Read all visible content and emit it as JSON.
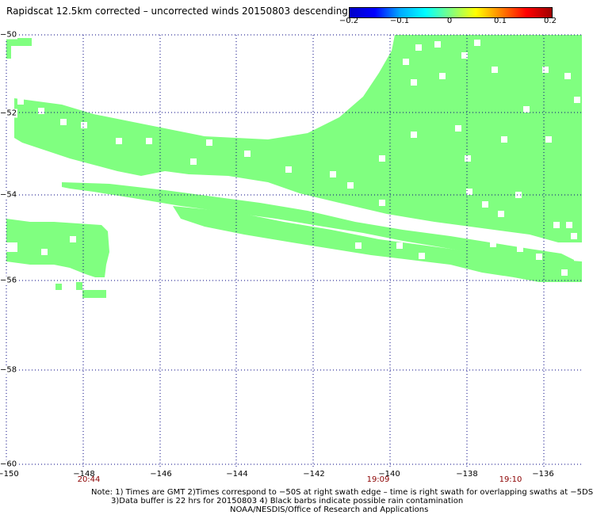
{
  "title": "Rapidscat 12.5km corrected – uncorrected winds 20150803 descending",
  "colorbar": {
    "ticks": [
      "−0.2",
      "−0.1",
      "0",
      "0.1",
      "0.2"
    ],
    "colors": [
      "#0000c8",
      "#0000ff",
      "#00aaff",
      "#00ffff",
      "#80ff80",
      "#ffff00",
      "#ff8000",
      "#ff0000",
      "#a00000"
    ]
  },
  "chart_data": {
    "type": "heatmap",
    "title": "Rapidscat 12.5km corrected – uncorrected winds 20150803 descending",
    "xlim": [
      -150,
      -135
    ],
    "ylim": [
      -60,
      -50
    ],
    "x_ticks": [
      "−150",
      "−148",
      "−146",
      "−144",
      "−142",
      "−140",
      "−138",
      "−136"
    ],
    "y_ticks": [
      "−50",
      "−52",
      "−54",
      "−56",
      "−58",
      "−60"
    ],
    "grid": true,
    "fill_color": "#80ff80",
    "value_shown": 0
  },
  "times": [
    "20:44",
    "19:09",
    "19:10"
  ],
  "notes": {
    "line1": "Note: 1) Times are GMT 2)Times correspond to −50S at right swath edge – time is right swath for overlapping swaths at −5DS",
    "line2": "3)Data buffer is 22 hrs for 20150803 4) Black barbs indicate possible rain contamination",
    "line3": "NOAA/NESDIS/Office of Research and Applications"
  }
}
